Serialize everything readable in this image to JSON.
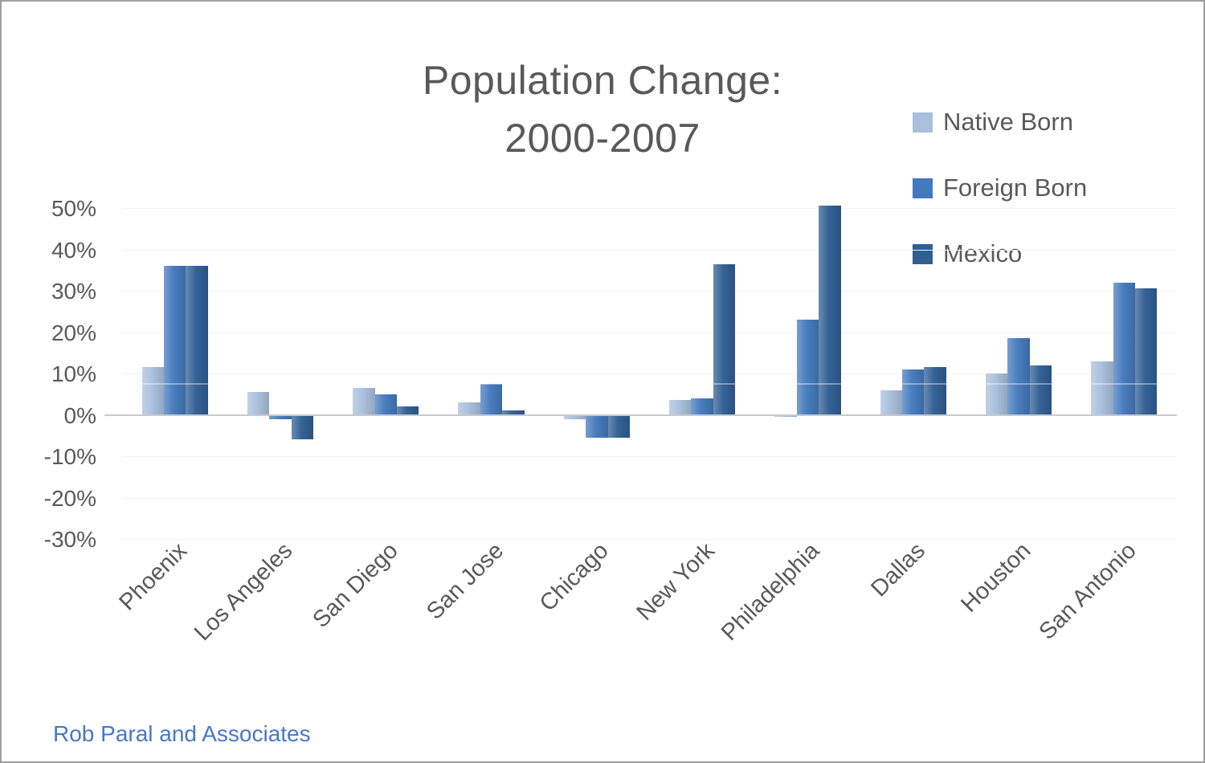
{
  "title": {
    "line1": "Population Change:",
    "line2": "2000-2007"
  },
  "footer": {
    "attribution": "Rob Paral and Associates"
  },
  "colors": {
    "native_born": "#a9bfdc",
    "foreign_born": "#4379bd",
    "mexico": "#2f5e93",
    "title_text": "#595959",
    "axis_line": "#c9c9c9",
    "attribution_text": "#4678c8"
  },
  "chart_data": {
    "type": "bar",
    "title": "Population Change: 2000-2007",
    "xlabel": "",
    "ylabel": "",
    "ylim": [
      -30,
      50
    ],
    "ytick_step": 10,
    "yticks": [
      "50%",
      "40%",
      "30%",
      "20%",
      "10%",
      "0%",
      "-10%",
      "-20%",
      "-30%"
    ],
    "grid": "very-faint-horizontal",
    "legend_position": "top-right",
    "categories": [
      "Phoenix",
      "Los Angeles",
      "San Diego",
      "San Jose",
      "Chicago",
      "New York",
      "Philadelphia",
      "Dallas",
      "Houston",
      "San Antonio"
    ],
    "series": [
      {
        "name": "Native Born",
        "color": "#a9bfdc",
        "values": [
          11.5,
          5.5,
          6.5,
          3,
          -1,
          3.5,
          -0.5,
          6,
          10,
          13
        ]
      },
      {
        "name": "Foreign Born",
        "color": "#4379bd",
        "values": [
          36,
          -1,
          5,
          7.5,
          -5.5,
          4,
          23,
          11,
          18.5,
          32
        ]
      },
      {
        "name": "Mexico",
        "color": "#2f5e93",
        "values": [
          36,
          -6,
          2,
          1,
          -5.5,
          36.5,
          50.5,
          11.5,
          12,
          30.5
        ]
      }
    ]
  }
}
